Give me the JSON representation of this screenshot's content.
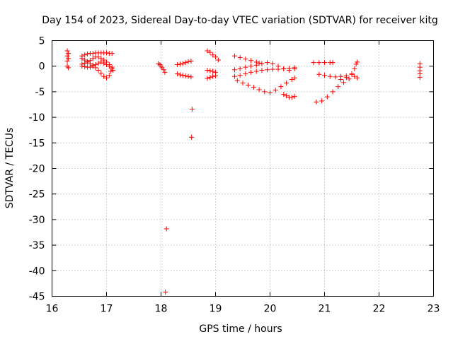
{
  "chart_data": {
    "type": "scatter",
    "title": "Day 154 of 2023, Sidereal Day-to-day VTEC variation (SDTVAR) for receiver kitg",
    "xlabel": "GPS time / hours",
    "ylabel": "SDTVAR / TECUs",
    "xlim": [
      16,
      23
    ],
    "ylim": [
      -45,
      5
    ],
    "xticks": [
      "16",
      "17",
      "18",
      "19",
      "20",
      "21",
      "22",
      "23"
    ],
    "yticks": [
      "5",
      "0",
      "-5",
      "-10",
      "-15",
      "-20",
      "-25",
      "-30",
      "-35",
      "-40",
      "-45"
    ],
    "grid": true,
    "marker": "+",
    "color": "#ff0000",
    "series": [
      {
        "points": [
          [
            16.28,
            3.0
          ],
          [
            16.28,
            2.0
          ],
          [
            16.28,
            1.0
          ],
          [
            16.28,
            0.0
          ],
          [
            16.3,
            2.5
          ],
          [
            16.3,
            1.5
          ],
          [
            16.3,
            -0.3
          ],
          [
            16.55,
            2.0
          ],
          [
            16.6,
            2.2
          ],
          [
            16.65,
            2.4
          ],
          [
            16.7,
            2.5
          ],
          [
            16.75,
            2.5
          ],
          [
            16.8,
            2.6
          ],
          [
            16.85,
            2.6
          ],
          [
            16.9,
            2.6
          ],
          [
            16.95,
            2.6
          ],
          [
            17.0,
            2.6
          ],
          [
            17.05,
            2.5
          ],
          [
            17.1,
            2.5
          ],
          [
            16.55,
            1.5
          ],
          [
            16.6,
            1.2
          ],
          [
            16.65,
            0.9
          ],
          [
            16.7,
            0.5
          ],
          [
            16.75,
            0.2
          ],
          [
            16.8,
            -0.3
          ],
          [
            16.85,
            -0.8
          ],
          [
            16.9,
            -1.4
          ],
          [
            16.95,
            -2.0
          ],
          [
            17.0,
            -2.3
          ],
          [
            17.05,
            -1.8
          ],
          [
            17.08,
            -1.0
          ],
          [
            16.55,
            0.4
          ],
          [
            16.6,
            0.6
          ],
          [
            16.65,
            0.8
          ],
          [
            16.7,
            1.1
          ],
          [
            16.75,
            1.5
          ],
          [
            16.8,
            1.8
          ],
          [
            16.85,
            1.8
          ],
          [
            16.9,
            1.5
          ],
          [
            16.95,
            1.2
          ],
          [
            17.0,
            0.8
          ],
          [
            17.05,
            0.3
          ],
          [
            17.1,
            -0.2
          ],
          [
            17.12,
            -0.8
          ],
          [
            16.55,
            0.0
          ],
          [
            16.6,
            -0.1
          ],
          [
            16.65,
            -0.2
          ],
          [
            16.7,
            -0.2
          ],
          [
            16.75,
            0.0
          ],
          [
            16.8,
            0.3
          ],
          [
            16.85,
            0.6
          ],
          [
            16.9,
            0.8
          ],
          [
            16.95,
            0.6
          ],
          [
            17.0,
            0.3
          ],
          [
            17.05,
            0.0
          ],
          [
            17.1,
            -0.5
          ],
          [
            17.95,
            0.5
          ],
          [
            17.98,
            0.3
          ],
          [
            18.0,
            0.0
          ],
          [
            18.02,
            -0.3
          ],
          [
            18.05,
            -0.7
          ],
          [
            18.07,
            -1.2
          ],
          [
            18.1,
            -31.8
          ],
          [
            18.08,
            -44.2
          ],
          [
            18.3,
            0.3
          ],
          [
            18.35,
            0.4
          ],
          [
            18.4,
            0.5
          ],
          [
            18.45,
            0.7
          ],
          [
            18.5,
            0.9
          ],
          [
            18.55,
            1.0
          ],
          [
            18.3,
            -1.5
          ],
          [
            18.35,
            -1.7
          ],
          [
            18.4,
            -1.8
          ],
          [
            18.45,
            -1.9
          ],
          [
            18.5,
            -2.0
          ],
          [
            18.55,
            -2.1
          ],
          [
            18.57,
            -8.4
          ],
          [
            18.56,
            -13.9
          ],
          [
            18.85,
            3.0
          ],
          [
            18.9,
            2.7
          ],
          [
            18.95,
            2.2
          ],
          [
            19.0,
            1.8
          ],
          [
            19.05,
            1.2
          ],
          [
            18.85,
            -0.8
          ],
          [
            18.9,
            -0.9
          ],
          [
            18.95,
            -1.0
          ],
          [
            19.0,
            -1.2
          ],
          [
            18.85,
            -2.4
          ],
          [
            18.9,
            -2.2
          ],
          [
            18.95,
            -2.0
          ],
          [
            19.0,
            -1.9
          ],
          [
            19.35,
            2.0
          ],
          [
            19.45,
            1.7
          ],
          [
            19.55,
            1.4
          ],
          [
            19.65,
            1.1
          ],
          [
            19.75,
            0.8
          ],
          [
            19.8,
            0.6
          ],
          [
            19.35,
            -0.7
          ],
          [
            19.45,
            -0.5
          ],
          [
            19.55,
            -0.2
          ],
          [
            19.65,
            0.0
          ],
          [
            19.75,
            0.2
          ],
          [
            19.85,
            0.5
          ],
          [
            19.95,
            0.7
          ],
          [
            20.05,
            0.5
          ],
          [
            20.15,
            0.0
          ],
          [
            20.25,
            -0.5
          ],
          [
            20.35,
            -0.8
          ],
          [
            20.45,
            -0.5
          ],
          [
            19.35,
            -2.0
          ],
          [
            19.45,
            -1.8
          ],
          [
            19.55,
            -1.5
          ],
          [
            19.65,
            -1.2
          ],
          [
            19.75,
            -1.0
          ],
          [
            19.85,
            -0.8
          ],
          [
            19.95,
            -0.7
          ],
          [
            20.05,
            -0.6
          ],
          [
            20.15,
            -0.6
          ],
          [
            20.25,
            -0.5
          ],
          [
            20.35,
            -0.4
          ],
          [
            20.45,
            -0.3
          ],
          [
            19.4,
            -2.8
          ],
          [
            19.5,
            -3.3
          ],
          [
            19.6,
            -3.7
          ],
          [
            19.7,
            -4.1
          ],
          [
            19.8,
            -4.6
          ],
          [
            19.9,
            -5.0
          ],
          [
            20.0,
            -5.2
          ],
          [
            20.1,
            -4.7
          ],
          [
            20.2,
            -4.0
          ],
          [
            20.3,
            -3.3
          ],
          [
            20.4,
            -2.6
          ],
          [
            20.45,
            -2.3
          ],
          [
            20.25,
            -5.5
          ],
          [
            20.3,
            -5.8
          ],
          [
            20.35,
            -6.1
          ],
          [
            20.4,
            -6.1
          ],
          [
            20.45,
            -5.9
          ],
          [
            20.8,
            0.7
          ],
          [
            20.9,
            0.7
          ],
          [
            21.0,
            0.7
          ],
          [
            21.1,
            0.7
          ],
          [
            21.15,
            0.7
          ],
          [
            20.85,
            -7.0
          ],
          [
            20.95,
            -6.8
          ],
          [
            21.05,
            -6.0
          ],
          [
            21.15,
            -5.0
          ],
          [
            21.25,
            -4.0
          ],
          [
            21.35,
            -3.2
          ],
          [
            21.45,
            -2.5
          ],
          [
            21.55,
            -2.0
          ],
          [
            20.9,
            -1.6
          ],
          [
            21.0,
            -1.8
          ],
          [
            21.1,
            -2.0
          ],
          [
            21.2,
            -2.1
          ],
          [
            21.3,
            -2.0
          ],
          [
            21.4,
            -1.9
          ],
          [
            21.5,
            -1.6
          ],
          [
            21.3,
            -2.6
          ],
          [
            21.4,
            -2.2
          ],
          [
            21.5,
            -1.5
          ],
          [
            21.55,
            -0.5
          ],
          [
            21.58,
            0.4
          ],
          [
            21.6,
            0.8
          ],
          [
            21.6,
            -2.3
          ],
          [
            22.75,
            0.5
          ],
          [
            22.75,
            -0.2
          ],
          [
            22.75,
            -0.9
          ],
          [
            22.75,
            -1.5
          ],
          [
            22.75,
            -2.2
          ]
        ]
      }
    ]
  }
}
